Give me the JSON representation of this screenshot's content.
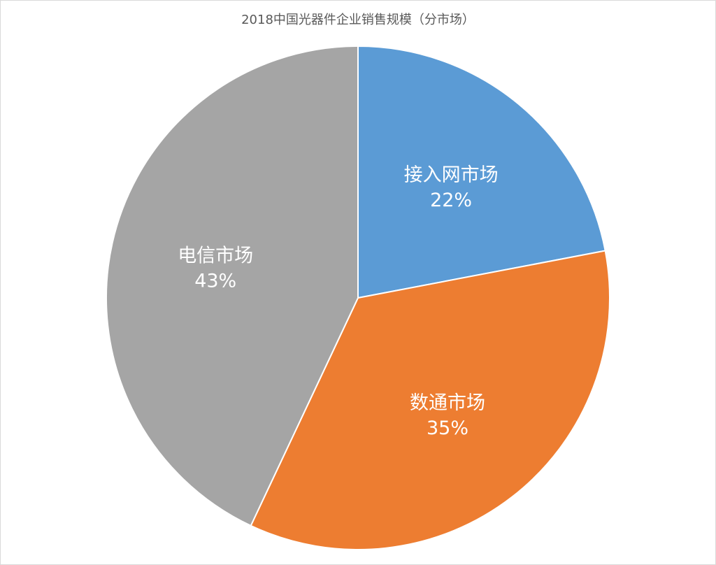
{
  "chart_data": {
    "type": "pie",
    "title": "2018中国光器件企业销售规模（分市场）",
    "slices": [
      {
        "label": "接入网市场",
        "value": 22,
        "value_label": "22%",
        "color": "#5b9bd5"
      },
      {
        "label": "数通市场",
        "value": 35,
        "value_label": "35%",
        "color": "#ed7d31"
      },
      {
        "label": "电信市场",
        "value": 43,
        "value_label": "43%",
        "color": "#a5a5a5"
      }
    ],
    "start_angle_deg": 0,
    "direction": "clockwise"
  }
}
